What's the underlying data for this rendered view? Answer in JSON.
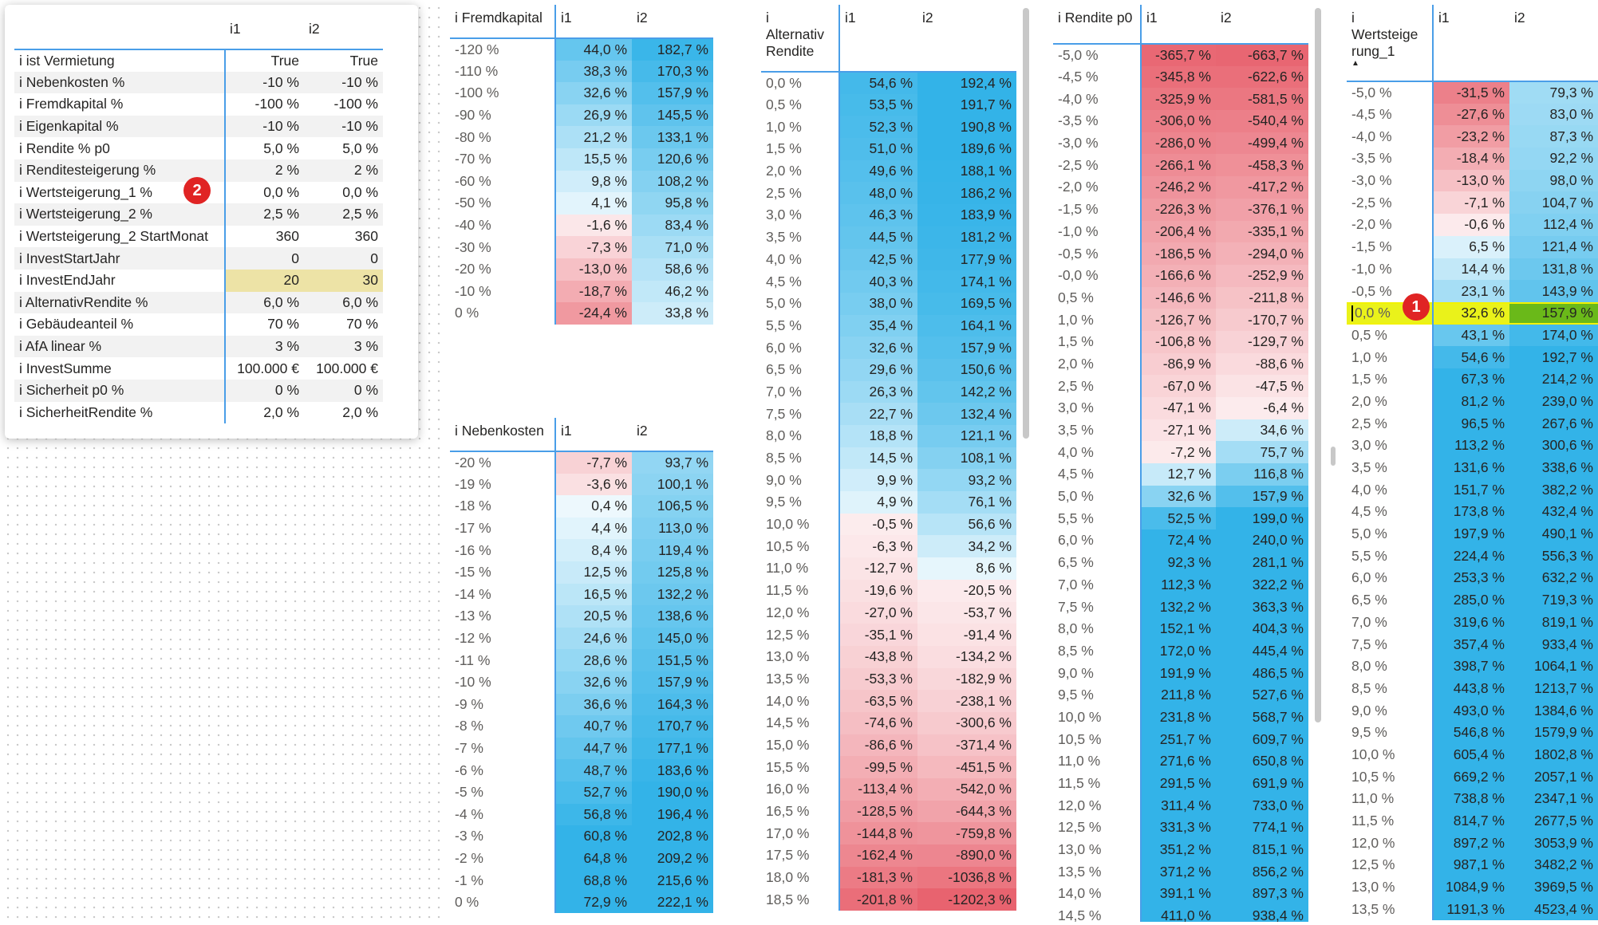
{
  "params": {
    "columns": [
      "i1",
      "i2"
    ],
    "rows": [
      {
        "label": "i ist Vermietung",
        "i1": "True",
        "i2": "True"
      },
      {
        "label": "i Nebenkosten %",
        "i1": "-10 %",
        "i2": "-10 %"
      },
      {
        "label": "i Fremdkapital %",
        "i1": "-100 %",
        "i2": "-100 %"
      },
      {
        "label": "i Eigenkapital %",
        "i1": "-10 %",
        "i2": "-10 %"
      },
      {
        "label": "i Rendite % p0",
        "i1": "5,0 %",
        "i2": "5,0 %"
      },
      {
        "label": "i Renditesteigerung %",
        "i1": "2 %",
        "i2": "2 %"
      },
      {
        "label": "i Wertsteigerung_1 %",
        "i1": "0,0 %",
        "i2": "0,0 %"
      },
      {
        "label": "i Wertsteigerung_2 %",
        "i1": "2,5 %",
        "i2": "2,5 %"
      },
      {
        "label": "i Wertsteigerung_2 StartMonat",
        "i1": "360",
        "i2": "360"
      },
      {
        "label": "i InvestStartJahr",
        "i1": "0",
        "i2": "0"
      },
      {
        "label": "i InvestEndJahr",
        "i1": "20",
        "i2": "30"
      },
      {
        "label": "i AlternativRendite %",
        "i1": "6,0 %",
        "i2": "6,0 %"
      },
      {
        "label": "i Gebäudeanteil %",
        "i1": "70 %",
        "i2": "70 %"
      },
      {
        "label": "i AfA linear %",
        "i1": "3 %",
        "i2": "3 %"
      },
      {
        "label": "i InvestSumme",
        "i1": "100.000 €",
        "i2": "100.000 €"
      },
      {
        "label": "i Sicherheit p0 %",
        "i1": "0 %",
        "i2": "0 %"
      },
      {
        "label": "i SicherheitRendite %",
        "i1": "2,0 %",
        "i2": "2,0 %"
      }
    ],
    "highlight_color": "#ede3a6"
  },
  "badges": {
    "one": "1",
    "two": "2"
  },
  "colors": {
    "negative": "#e8636f",
    "positive": "#33b3e8",
    "selected_row": "#eaf21a",
    "selected_cell": "#6ab919",
    "accent": "#4a9ee8"
  },
  "fremd": {
    "header": [
      "i Fremdkapital",
      "i1",
      "i2"
    ],
    "rows": [
      [
        "-120 %",
        "44,0 %",
        "182,7 %"
      ],
      [
        "-110 %",
        "38,3 %",
        "170,3 %"
      ],
      [
        "-100 %",
        "32,6 %",
        "157,9 %"
      ],
      [
        "-90 %",
        "26,9 %",
        "145,5 %"
      ],
      [
        "-80 %",
        "21,2 %",
        "133,1 %"
      ],
      [
        "-70 %",
        "15,5 %",
        "120,6 %"
      ],
      [
        "-60 %",
        "9,8 %",
        "108,2 %"
      ],
      [
        "-50 %",
        "4,1 %",
        "95,8 %"
      ],
      [
        "-40 %",
        "-1,6 %",
        "83,4 %"
      ],
      [
        "-30 %",
        "-7,3 %",
        "71,0 %"
      ],
      [
        "-20 %",
        "-13,0 %",
        "58,6 %"
      ],
      [
        "-10 %",
        "-18,7 %",
        "46,2 %"
      ],
      [
        "0 %",
        "-24,4 %",
        "33,8 %"
      ]
    ]
  },
  "neben": {
    "header": [
      "i Nebenkosten",
      "i1",
      "i2"
    ],
    "rows": [
      [
        "-20 %",
        "-7,7 %",
        "93,7 %"
      ],
      [
        "-19 %",
        "-3,6 %",
        "100,1 %"
      ],
      [
        "-18 %",
        "0,4 %",
        "106,5 %"
      ],
      [
        "-17 %",
        "4,4 %",
        "113,0 %"
      ],
      [
        "-16 %",
        "8,4 %",
        "119,4 %"
      ],
      [
        "-15 %",
        "12,5 %",
        "125,8 %"
      ],
      [
        "-14 %",
        "16,5 %",
        "132,2 %"
      ],
      [
        "-13 %",
        "20,5 %",
        "138,6 %"
      ],
      [
        "-12 %",
        "24,6 %",
        "145,0 %"
      ],
      [
        "-11 %",
        "28,6 %",
        "151,5 %"
      ],
      [
        "-10 %",
        "32,6 %",
        "157,9 %"
      ],
      [
        "-9 %",
        "36,6 %",
        "164,3 %"
      ],
      [
        "-8 %",
        "40,7 %",
        "170,7 %"
      ],
      [
        "-7 %",
        "44,7 %",
        "177,1 %"
      ],
      [
        "-6 %",
        "48,7 %",
        "183,6 %"
      ],
      [
        "-5 %",
        "52,7 %",
        "190,0 %"
      ],
      [
        "-4 %",
        "56,8 %",
        "196,4 %"
      ],
      [
        "-3 %",
        "60,8 %",
        "202,8 %"
      ],
      [
        "-2 %",
        "64,8 %",
        "209,2 %"
      ],
      [
        "-1 %",
        "68,8 %",
        "215,6 %"
      ],
      [
        "0 %",
        "72,9 %",
        "222,1 %"
      ]
    ]
  },
  "alt": {
    "header": [
      "i\nAlternativ\nRendite",
      "i1",
      "i2"
    ],
    "rows": [
      [
        "0,0 %",
        "54,6 %",
        "192,4 %"
      ],
      [
        "0,5 %",
        "53,5 %",
        "191,7 %"
      ],
      [
        "1,0 %",
        "52,3 %",
        "190,8 %"
      ],
      [
        "1,5 %",
        "51,0 %",
        "189,6 %"
      ],
      [
        "2,0 %",
        "49,6 %",
        "188,1 %"
      ],
      [
        "2,5 %",
        "48,0 %",
        "186,2 %"
      ],
      [
        "3,0 %",
        "46,3 %",
        "183,9 %"
      ],
      [
        "3,5 %",
        "44,5 %",
        "181,2 %"
      ],
      [
        "4,0 %",
        "42,5 %",
        "177,9 %"
      ],
      [
        "4,5 %",
        "40,3 %",
        "174,1 %"
      ],
      [
        "5,0 %",
        "38,0 %",
        "169,5 %"
      ],
      [
        "5,5 %",
        "35,4 %",
        "164,1 %"
      ],
      [
        "6,0 %",
        "32,6 %",
        "157,9 %"
      ],
      [
        "6,5 %",
        "29,6 %",
        "150,6 %"
      ],
      [
        "7,0 %",
        "26,3 %",
        "142,2 %"
      ],
      [
        "7,5 %",
        "22,7 %",
        "132,4 %"
      ],
      [
        "8,0 %",
        "18,8 %",
        "121,1 %"
      ],
      [
        "8,5 %",
        "14,5 %",
        "108,1 %"
      ],
      [
        "9,0 %",
        "9,9 %",
        "93,2 %"
      ],
      [
        "9,5 %",
        "4,9 %",
        "76,1 %"
      ],
      [
        "10,0 %",
        "-0,5 %",
        "56,6 %"
      ],
      [
        "10,5 %",
        "-6,3 %",
        "34,2 %"
      ],
      [
        "11,0 %",
        "-12,7 %",
        "8,6 %"
      ],
      [
        "11,5 %",
        "-19,6 %",
        "-20,5 %"
      ],
      [
        "12,0 %",
        "-27,0 %",
        "-53,7 %"
      ],
      [
        "12,5 %",
        "-35,1 %",
        "-91,4 %"
      ],
      [
        "13,0 %",
        "-43,8 %",
        "-134,2 %"
      ],
      [
        "13,5 %",
        "-53,3 %",
        "-182,9 %"
      ],
      [
        "14,0 %",
        "-63,5 %",
        "-238,1 %"
      ],
      [
        "14,5 %",
        "-74,6 %",
        "-300,6 %"
      ],
      [
        "15,0 %",
        "-86,6 %",
        "-371,4 %"
      ],
      [
        "15,5 %",
        "-99,5 %",
        "-451,5 %"
      ],
      [
        "16,0 %",
        "-113,4 %",
        "-542,0 %"
      ],
      [
        "16,5 %",
        "-128,5 %",
        "-644,3 %"
      ],
      [
        "17,0 %",
        "-144,8 %",
        "-759,8 %"
      ],
      [
        "17,5 %",
        "-162,4 %",
        "-890,0 %"
      ],
      [
        "18,0 %",
        "-181,3 %",
        "-1036,8 %"
      ],
      [
        "18,5 %",
        "-201,8 %",
        "-1202,3 %"
      ]
    ]
  },
  "rend": {
    "header": [
      "i Rendite p0",
      "i1",
      "i2"
    ],
    "rows": [
      [
        "-5,0 %",
        "-365,7 %",
        "-663,7 %"
      ],
      [
        "-4,5 %",
        "-345,8 %",
        "-622,6 %"
      ],
      [
        "-4,0 %",
        "-325,9 %",
        "-581,5 %"
      ],
      [
        "-3,5 %",
        "-306,0 %",
        "-540,4 %"
      ],
      [
        "-3,0 %",
        "-286,0 %",
        "-499,4 %"
      ],
      [
        "-2,5 %",
        "-266,1 %",
        "-458,3 %"
      ],
      [
        "-2,0 %",
        "-246,2 %",
        "-417,2 %"
      ],
      [
        "-1,5 %",
        "-226,3 %",
        "-376,1 %"
      ],
      [
        "-1,0 %",
        "-206,4 %",
        "-335,1 %"
      ],
      [
        "-0,5 %",
        "-186,5 %",
        "-294,0 %"
      ],
      [
        "-0,0 %",
        "-166,6 %",
        "-252,9 %"
      ],
      [
        "0,5 %",
        "-146,6 %",
        "-211,8 %"
      ],
      [
        "1,0 %",
        "-126,7 %",
        "-170,7 %"
      ],
      [
        "1,5 %",
        "-106,8 %",
        "-129,7 %"
      ],
      [
        "2,0 %",
        "-86,9 %",
        "-88,6 %"
      ],
      [
        "2,5 %",
        "-67,0 %",
        "-47,5 %"
      ],
      [
        "3,0 %",
        "-47,1 %",
        "-6,4 %"
      ],
      [
        "3,5 %",
        "-27,1 %",
        "34,6 %"
      ],
      [
        "4,0 %",
        "-7,2 %",
        "75,7 %"
      ],
      [
        "4,5 %",
        "12,7 %",
        "116,8 %"
      ],
      [
        "5,0 %",
        "32,6 %",
        "157,9 %"
      ],
      [
        "5,5 %",
        "52,5 %",
        "199,0 %"
      ],
      [
        "6,0 %",
        "72,4 %",
        "240,0 %"
      ],
      [
        "6,5 %",
        "92,3 %",
        "281,1 %"
      ],
      [
        "7,0 %",
        "112,3 %",
        "322,2 %"
      ],
      [
        "7,5 %",
        "132,2 %",
        "363,3 %"
      ],
      [
        "8,0 %",
        "152,1 %",
        "404,3 %"
      ],
      [
        "8,5 %",
        "172,0 %",
        "445,4 %"
      ],
      [
        "9,0 %",
        "191,9 %",
        "486,5 %"
      ],
      [
        "9,5 %",
        "211,8 %",
        "527,6 %"
      ],
      [
        "10,0 %",
        "231,8 %",
        "568,7 %"
      ],
      [
        "10,5 %",
        "251,7 %",
        "609,7 %"
      ],
      [
        "11,0 %",
        "271,6 %",
        "650,8 %"
      ],
      [
        "11,5 %",
        "291,5 %",
        "691,9 %"
      ],
      [
        "12,0 %",
        "311,4 %",
        "733,0 %"
      ],
      [
        "12,5 %",
        "331,3 %",
        "774,1 %"
      ],
      [
        "13,0 %",
        "351,2 %",
        "815,1 %"
      ],
      [
        "13,5 %",
        "371,2 %",
        "856,2 %"
      ],
      [
        "14,0 %",
        "391,1 %",
        "897,3 %"
      ],
      [
        "14,5 %",
        "411,0 %",
        "938,4 %"
      ]
    ]
  },
  "wert": {
    "header": [
      "i\nWertsteige\nrung_1",
      "i1",
      "i2"
    ],
    "selected_index": 10,
    "rows": [
      [
        "-5,0 %",
        "-31,5 %",
        "79,3 %"
      ],
      [
        "-4,5 %",
        "-27,6 %",
        "83,0 %"
      ],
      [
        "-4,0 %",
        "-23,2 %",
        "87,3 %"
      ],
      [
        "-3,5 %",
        "-18,4 %",
        "92,2 %"
      ],
      [
        "-3,0 %",
        "-13,0 %",
        "98,0 %"
      ],
      [
        "-2,5 %",
        "-7,1 %",
        "104,7 %"
      ],
      [
        "-2,0 %",
        "-0,6 %",
        "112,4 %"
      ],
      [
        "-1,5 %",
        "6,5 %",
        "121,4 %"
      ],
      [
        "-1,0 %",
        "14,4 %",
        "131,8 %"
      ],
      [
        "-0,5 %",
        "23,1 %",
        "143,9 %"
      ],
      [
        "0,0 %",
        "32,6 %",
        "157,9 %"
      ],
      [
        "0,5 %",
        "43,1 %",
        "174,0 %"
      ],
      [
        "1,0 %",
        "54,6 %",
        "192,7 %"
      ],
      [
        "1,5 %",
        "67,3 %",
        "214,2 %"
      ],
      [
        "2,0 %",
        "81,2 %",
        "239,0 %"
      ],
      [
        "2,5 %",
        "96,5 %",
        "267,6 %"
      ],
      [
        "3,0 %",
        "113,2 %",
        "300,6 %"
      ],
      [
        "3,5 %",
        "131,6 %",
        "338,6 %"
      ],
      [
        "4,0 %",
        "151,7 %",
        "382,2 %"
      ],
      [
        "4,5 %",
        "173,8 %",
        "432,4 %"
      ],
      [
        "5,0 %",
        "197,9 %",
        "490,1 %"
      ],
      [
        "5,5 %",
        "224,4 %",
        "556,3 %"
      ],
      [
        "6,0 %",
        "253,3 %",
        "632,2 %"
      ],
      [
        "6,5 %",
        "285,0 %",
        "719,3 %"
      ],
      [
        "7,0 %",
        "319,6 %",
        "819,1 %"
      ],
      [
        "7,5 %",
        "357,4 %",
        "933,4 %"
      ],
      [
        "8,0 %",
        "398,7 %",
        "1064,1 %"
      ],
      [
        "8,5 %",
        "443,8 %",
        "1213,7 %"
      ],
      [
        "9,0 %",
        "493,0 %",
        "1384,6 %"
      ],
      [
        "9,5 %",
        "546,8 %",
        "1579,9 %"
      ],
      [
        "10,0 %",
        "605,4 %",
        "1802,8 %"
      ],
      [
        "10,5 %",
        "669,2 %",
        "2057,1 %"
      ],
      [
        "11,0 %",
        "738,8 %",
        "2347,1 %"
      ],
      [
        "11,5 %",
        "814,7 %",
        "2677,5 %"
      ],
      [
        "12,0 %",
        "897,2 %",
        "3053,9 %"
      ],
      [
        "12,5 %",
        "987,1 %",
        "3482,2 %"
      ],
      [
        "13,0 %",
        "1084,9 %",
        "3969,5 %"
      ],
      [
        "13,5 %",
        "1191,3 %",
        "4523,4 %"
      ]
    ]
  }
}
